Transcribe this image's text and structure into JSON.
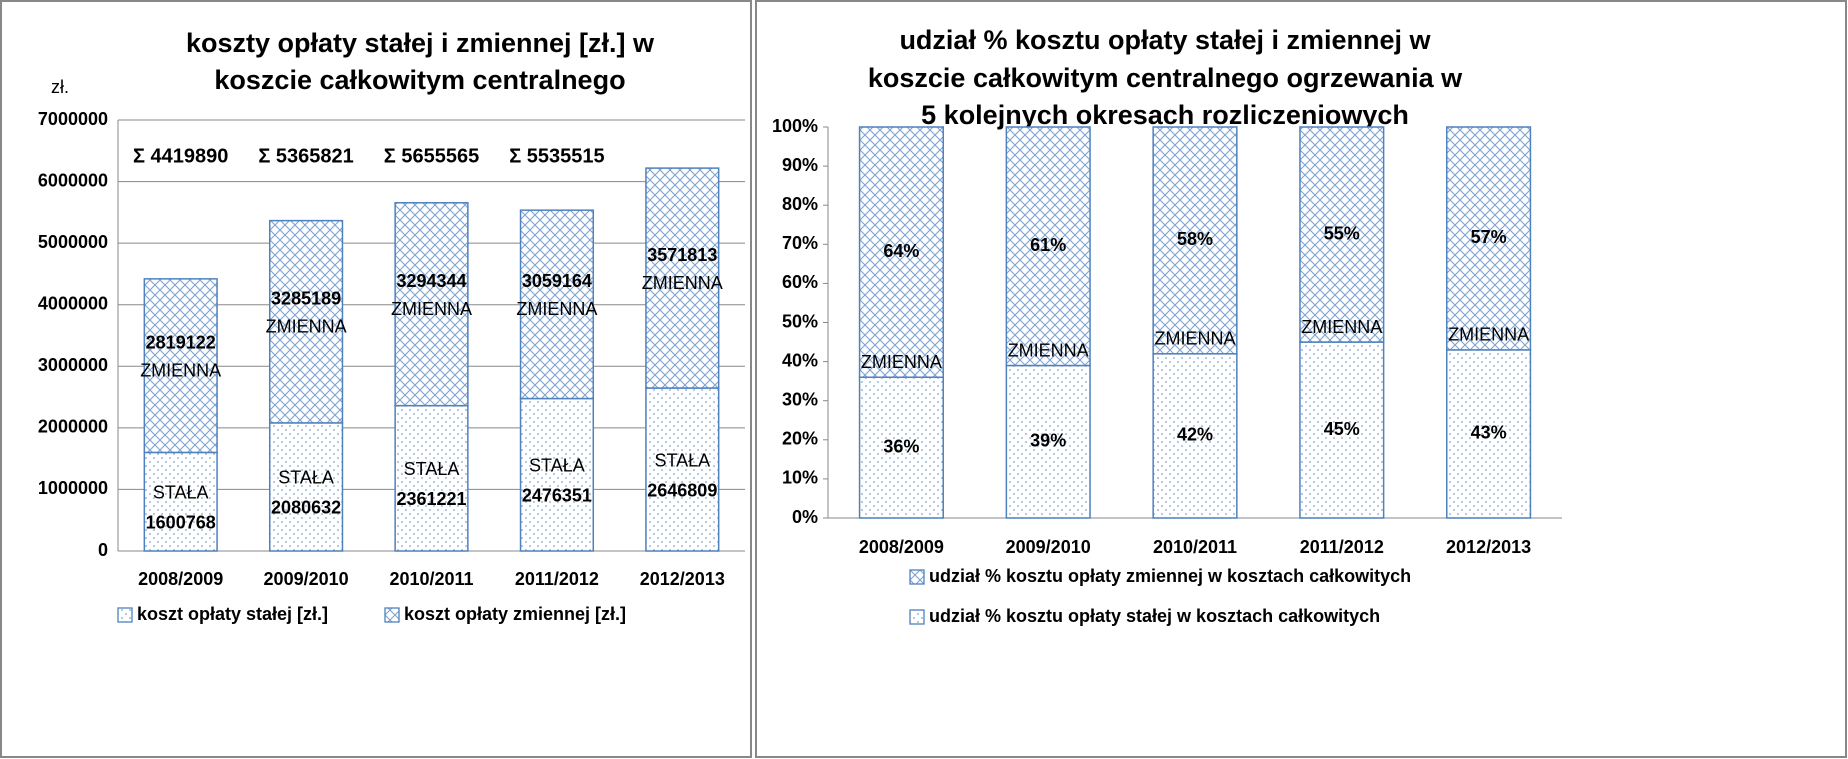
{
  "chart_data": [
    {
      "type": "bar",
      "stacked": true,
      "title": [
        "koszty opłaty stałej i zmiennej [zł.] w",
        "koszcie całkowitym centralnego"
      ],
      "y_label": "zł.",
      "categories": [
        "2008/2009",
        "2009/2010",
        "2010/2011",
        "2011/2012",
        "2012/2013"
      ],
      "annotations": [
        "Σ 4419890",
        "Σ 5365821",
        "Σ 5655565",
        "Σ 5535515"
      ],
      "series": [
        {
          "name": "koszt opłaty stałej [zł.]",
          "label": "STAŁA",
          "color": "#4f81bd",
          "pattern": "dots",
          "values": [
            1600768,
            2080632,
            2361221,
            2476351,
            2646809
          ]
        },
        {
          "name": "koszt opłaty zmiennej [zł.]",
          "label": "ZMIENNA",
          "color": "#4f81bd",
          "pattern": "cross",
          "values": [
            2819122,
            3285189,
            3294344,
            3059164,
            3571813
          ]
        }
      ],
      "ylim": [
        0,
        7000000
      ],
      "yticks": [
        0,
        1000000,
        2000000,
        3000000,
        4000000,
        5000000,
        6000000,
        7000000
      ],
      "grid": true,
      "legend": "bottom"
    },
    {
      "type": "bar",
      "stacked": true,
      "title": [
        "udział % kosztu opłaty stałej i zmiennej w",
        "koszcie całkowitym centralnego ogrzewania w",
        "5 kolejnych okresach rozliczeniowych"
      ],
      "categories": [
        "2008/2009",
        "2009/2010",
        "2010/2011",
        "2011/2012",
        "2012/2013"
      ],
      "series": [
        {
          "name": "udział % kosztu opłaty stałej w kosztach całkowitych",
          "color": "#4f81bd",
          "pattern": "dots",
          "values": [
            36,
            39,
            42,
            45,
            43
          ],
          "value_labels": [
            "36%",
            "39%",
            "42%",
            "45%",
            "43%"
          ]
        },
        {
          "name": "udział % kosztu opłaty zmiennej w kosztach całkowitych",
          "label": "ZMIENNA",
          "color": "#4f81bd",
          "pattern": "cross",
          "values": [
            64,
            61,
            58,
            55,
            57
          ],
          "value_labels": [
            "64%",
            "61%",
            "58%",
            "55%",
            "57%"
          ]
        }
      ],
      "ylim": [
        0,
        100
      ],
      "yticks": [
        {
          "value": 0,
          "label": "0%"
        },
        {
          "value": 10,
          "label": "10%"
        },
        {
          "value": 20,
          "label": "20%"
        },
        {
          "value": 30,
          "label": "30%"
        },
        {
          "value": 40,
          "label": "40%"
        },
        {
          "value": 50,
          "label": "50%"
        },
        {
          "value": 60,
          "label": "60%"
        },
        {
          "value": 70,
          "label": "70%"
        },
        {
          "value": 80,
          "label": "80%"
        },
        {
          "value": 90,
          "label": "90%"
        },
        {
          "value": 100,
          "label": "100%"
        }
      ],
      "grid": false,
      "legend": "bottom"
    }
  ]
}
